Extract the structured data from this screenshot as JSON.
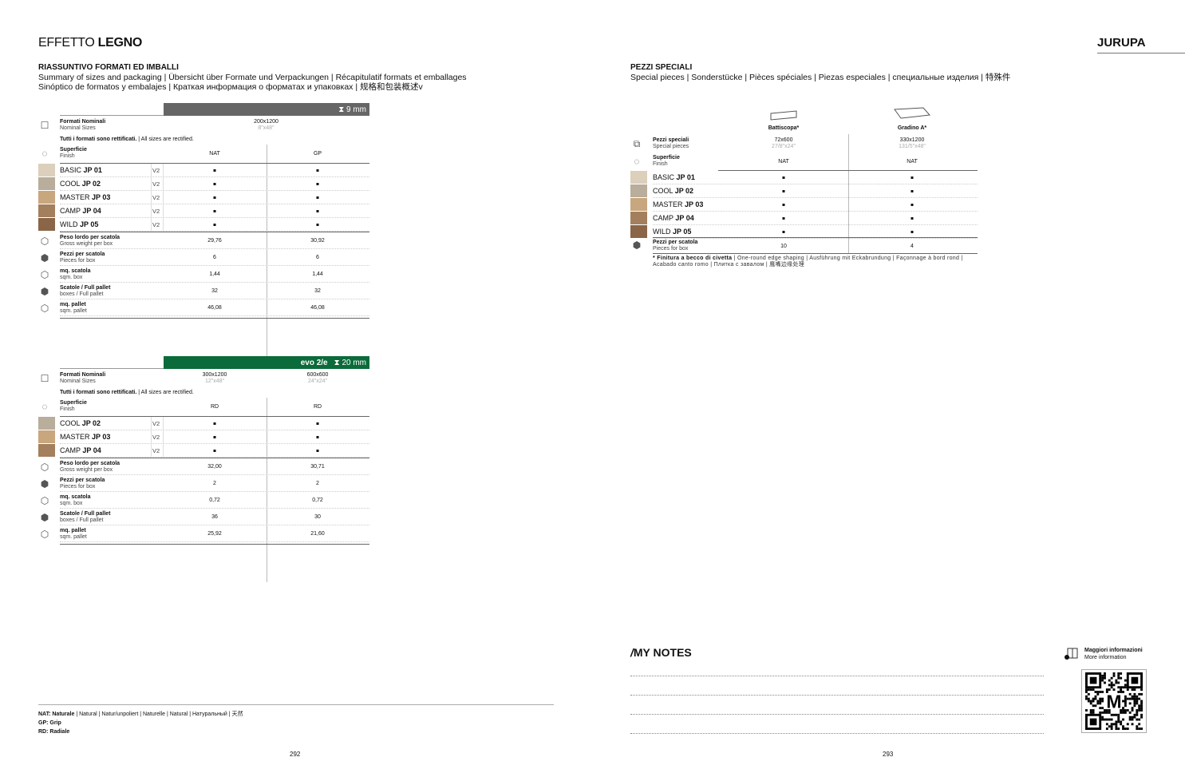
{
  "left_page": {
    "title_light": "EFFETTO",
    "title_bold": "LEGNO",
    "section_title": "RIASSUNTIVO FORMATI ED IMBALLI",
    "section_sub1": "Summary of sizes and packaging | Übersicht über Formate und Verpackungen | Récapitulatif formats et emballages",
    "section_sub2": "Sinóptico de formatos y embalajes | Краткая информация о форматах и упаковках | 规格和包装概述v",
    "page_number": "292",
    "legend": [
      {
        "key": "NAT: Naturale",
        "text": " | Natural | Natur/unpoliert | Naturelle | Natural | Натуральный | 天然"
      },
      {
        "key": "GP: Grip",
        "text": ""
      },
      {
        "key": "RD: Radiale",
        "text": ""
      }
    ]
  },
  "tables": [
    {
      "thickness": "9 mm",
      "bar_color": "#666666",
      "logo": "",
      "formati_label": "Formati Nominali",
      "formati_sub": "Nominal Sizes",
      "note_bold": "Tutti i formati sono rettificati.",
      "note": " | All sizes are rectified.",
      "superficie_label": "Superficie",
      "superficie_sub": "Finish",
      "sizes": [
        {
          "mm": "200x1200",
          "inch": "8\"x48\""
        }
      ],
      "finishes": [
        "NAT",
        "GP"
      ],
      "products": [
        {
          "name": "BASIC",
          "code": "JP 01",
          "v": "V2",
          "color": "#dccfbb",
          "marks": [
            "■",
            "■"
          ]
        },
        {
          "name": "COOL",
          "code": "JP 02",
          "v": "V2",
          "color": "#b9ad9b",
          "marks": [
            "■",
            "■"
          ]
        },
        {
          "name": "MASTER",
          "code": "JP 03",
          "v": "V2",
          "color": "#c8a67e",
          "marks": [
            "■",
            "■"
          ]
        },
        {
          "name": "CAMP",
          "code": "JP 04",
          "v": "V2",
          "color": "#a47f5d",
          "marks": [
            "■",
            "■"
          ]
        },
        {
          "name": "WILD",
          "code": "JP 05",
          "v": "V2",
          "color": "#8a6547",
          "marks": [
            "■",
            "■"
          ]
        }
      ],
      "packaging": [
        {
          "label": "Peso lordo per scatola",
          "sub": "Gross weight per box",
          "values": [
            "29,76",
            "30,92"
          ]
        },
        {
          "label": "Pezzi per scatola",
          "sub": "Pieces for box",
          "values": [
            "6",
            "6"
          ]
        },
        {
          "label": "mq. scatola",
          "sub": "sqm. box",
          "values": [
            "1,44",
            "1,44"
          ]
        },
        {
          "label": "Scatole / Full pallet",
          "sub": "boxes / Full pallet",
          "values": [
            "32",
            "32"
          ]
        },
        {
          "label": "mq. pallet",
          "sub": "sqm. pallet",
          "values": [
            "46,08",
            "46,08"
          ]
        }
      ]
    },
    {
      "thickness": "20 mm",
      "bar_color": "#0b6b3a",
      "logo": "evo 2/e",
      "formati_label": "Formati Nominali",
      "formati_sub": "Nominal Sizes",
      "note_bold": "Tutti i formati sono rettificati.",
      "note": " | All sizes are rectified.",
      "superficie_label": "Superficie",
      "superficie_sub": "Finish",
      "sizes": [
        {
          "mm": "300x1200",
          "inch": "12\"x48\""
        },
        {
          "mm": "600x600",
          "inch": "24\"x24\""
        }
      ],
      "finishes": [
        "RD",
        "RD"
      ],
      "products": [
        {
          "name": "COOL",
          "code": "JP 02",
          "v": "V2",
          "color": "#b9ad9b",
          "marks": [
            "■",
            "■"
          ]
        },
        {
          "name": "MASTER",
          "code": "JP 03",
          "v": "V2",
          "color": "#c8a67e",
          "marks": [
            "■",
            "■"
          ]
        },
        {
          "name": "CAMP",
          "code": "JP 04",
          "v": "V2",
          "color": "#a47f5d",
          "marks": [
            "■",
            "■"
          ]
        }
      ],
      "packaging": [
        {
          "label": "Peso lordo per scatola",
          "sub": "Gross weight per box",
          "values": [
            "32,00",
            "30,71"
          ]
        },
        {
          "label": "Pezzi per scatola",
          "sub": "Pieces for box",
          "values": [
            "2",
            "2"
          ]
        },
        {
          "label": "mq. scatola",
          "sub": "sqm. box",
          "values": [
            "0,72",
            "0,72"
          ]
        },
        {
          "label": "Scatole / Full pallet",
          "sub": "boxes / Full pallet",
          "values": [
            "36",
            "30"
          ]
        },
        {
          "label": "mq. pallet",
          "sub": "sqm. pallet",
          "values": [
            "25,92",
            "21,60"
          ]
        }
      ]
    }
  ],
  "right_page": {
    "brand": "JURUPA",
    "section_title": "PEZZI SPECIALI",
    "section_sub": "Special pieces | Sonderstücke | Pièces spéciales | Piezas especiales | специальные изделия | 特殊件",
    "columns": [
      {
        "name": "Battiscopa*",
        "mm": "72x600",
        "inch": "27/8\"x24\"",
        "finish": "NAT",
        "pieces": "10"
      },
      {
        "name": "Gradino A*",
        "mm": "330x1200",
        "inch": "131/5\"x48\"",
        "finish": "NAT",
        "pieces": "4"
      }
    ],
    "pezzi_label": "Pezzi speciali",
    "pezzi_sub": "Special pieces",
    "superficie_label": "Superficie",
    "superficie_sub": "Finish",
    "pieces_label": "Pezzi per scatola",
    "pieces_sub": "Pieces for box",
    "products": [
      {
        "name": "BASIC",
        "code": "JP 01",
        "color": "#dccfbb"
      },
      {
        "name": "COOL",
        "code": "JP 02",
        "color": "#b9ad9b"
      },
      {
        "name": "MASTER",
        "code": "JP 03",
        "color": "#c8a67e"
      },
      {
        "name": "CAMP",
        "code": "JP 04",
        "color": "#a47f5d"
      },
      {
        "name": "WILD",
        "code": "JP 05",
        "color": "#8a6547"
      }
    ],
    "mark": "■",
    "footnote_bold": "* Finitura a becco di civetta",
    "footnote": " | One-round edge shaping | Ausführung mit Eckabrundung | Façonnage à bord rond | Acabado canto romo | Плитка с завалом | 鹰嘴边缘处理",
    "notes_title": "MY NOTES",
    "more_info": "Maggiori informazioni",
    "more_info_sub": "More information",
    "page_number": "293"
  }
}
